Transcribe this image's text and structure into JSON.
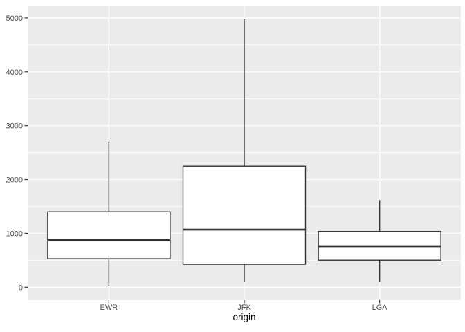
{
  "chart_data": {
    "type": "boxplot",
    "title": "",
    "xlabel": "origin",
    "ylabel": "",
    "categories": [
      "EWR",
      "JFK",
      "LGA"
    ],
    "yticks": [
      0,
      1000,
      2000,
      3000,
      4000,
      5000
    ],
    "minor_gridlines": [
      500,
      1500,
      2500,
      3500,
      4500
    ],
    "ylim": [
      -240,
      5230
    ],
    "grid": "on",
    "legend": "none",
    "series": [
      {
        "category": "EWR",
        "whisker_min": 17,
        "q1": 529,
        "median": 872,
        "q3": 1400,
        "whisker_max": 2700
      },
      {
        "category": "JFK",
        "whisker_min": 94,
        "q1": 427,
        "median": 1069,
        "q3": 2248,
        "whisker_max": 4983
      },
      {
        "category": "LGA",
        "whisker_min": 96,
        "q1": 502,
        "median": 762,
        "q3": 1035,
        "whisker_max": 1620
      }
    ],
    "colors": {
      "plot_background": "#FFFFFF",
      "panel_background": "#EBEBEB",
      "gridline": "#FFFFFF",
      "box_fill": "#FFFFFF",
      "box_stroke": "#333333",
      "median_stroke": "#333333",
      "tick_mark": "#333333",
      "axis_text": "#4D4D4D",
      "axis_title": "#000000"
    }
  }
}
